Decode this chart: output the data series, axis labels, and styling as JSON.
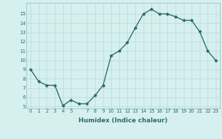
{
  "x": [
    0,
    1,
    2,
    3,
    4,
    5,
    6,
    7,
    8,
    9,
    10,
    11,
    12,
    13,
    14,
    15,
    16,
    17,
    18,
    19,
    20,
    21,
    22,
    23
  ],
  "y": [
    9,
    7.7,
    7.3,
    7.3,
    5.1,
    5.7,
    5.3,
    5.3,
    6.2,
    7.3,
    10.5,
    11.0,
    11.9,
    13.5,
    15.0,
    15.5,
    15.0,
    15.0,
    14.7,
    14.3,
    14.3,
    13.1,
    11.0,
    10.0
  ],
  "xlabel": "Humidex (Indice chaleur)",
  "ylim": [
    4.8,
    16.2
  ],
  "xlim": [
    -0.5,
    23.5
  ],
  "yticks": [
    5,
    6,
    7,
    8,
    9,
    10,
    11,
    12,
    13,
    14,
    15
  ],
  "xticks": [
    0,
    1,
    2,
    3,
    4,
    5,
    7,
    8,
    9,
    10,
    11,
    12,
    13,
    14,
    15,
    16,
    17,
    18,
    19,
    20,
    21,
    22,
    23
  ],
  "xtick_labels": [
    "0",
    "1",
    "2",
    "3",
    "4",
    "5",
    "7",
    "8",
    "9",
    "10",
    "11",
    "12",
    "13",
    "14",
    "15",
    "16",
    "17",
    "18",
    "19",
    "20",
    "21",
    "22",
    "23"
  ],
  "line_color": "#2a6e62",
  "bg_color": "#d6efef",
  "grid_color": "#b8d8d8",
  "marker": "D",
  "marker_size": 1.8,
  "linewidth": 1.0,
  "tick_fontsize": 5.0,
  "xlabel_fontsize": 6.5
}
